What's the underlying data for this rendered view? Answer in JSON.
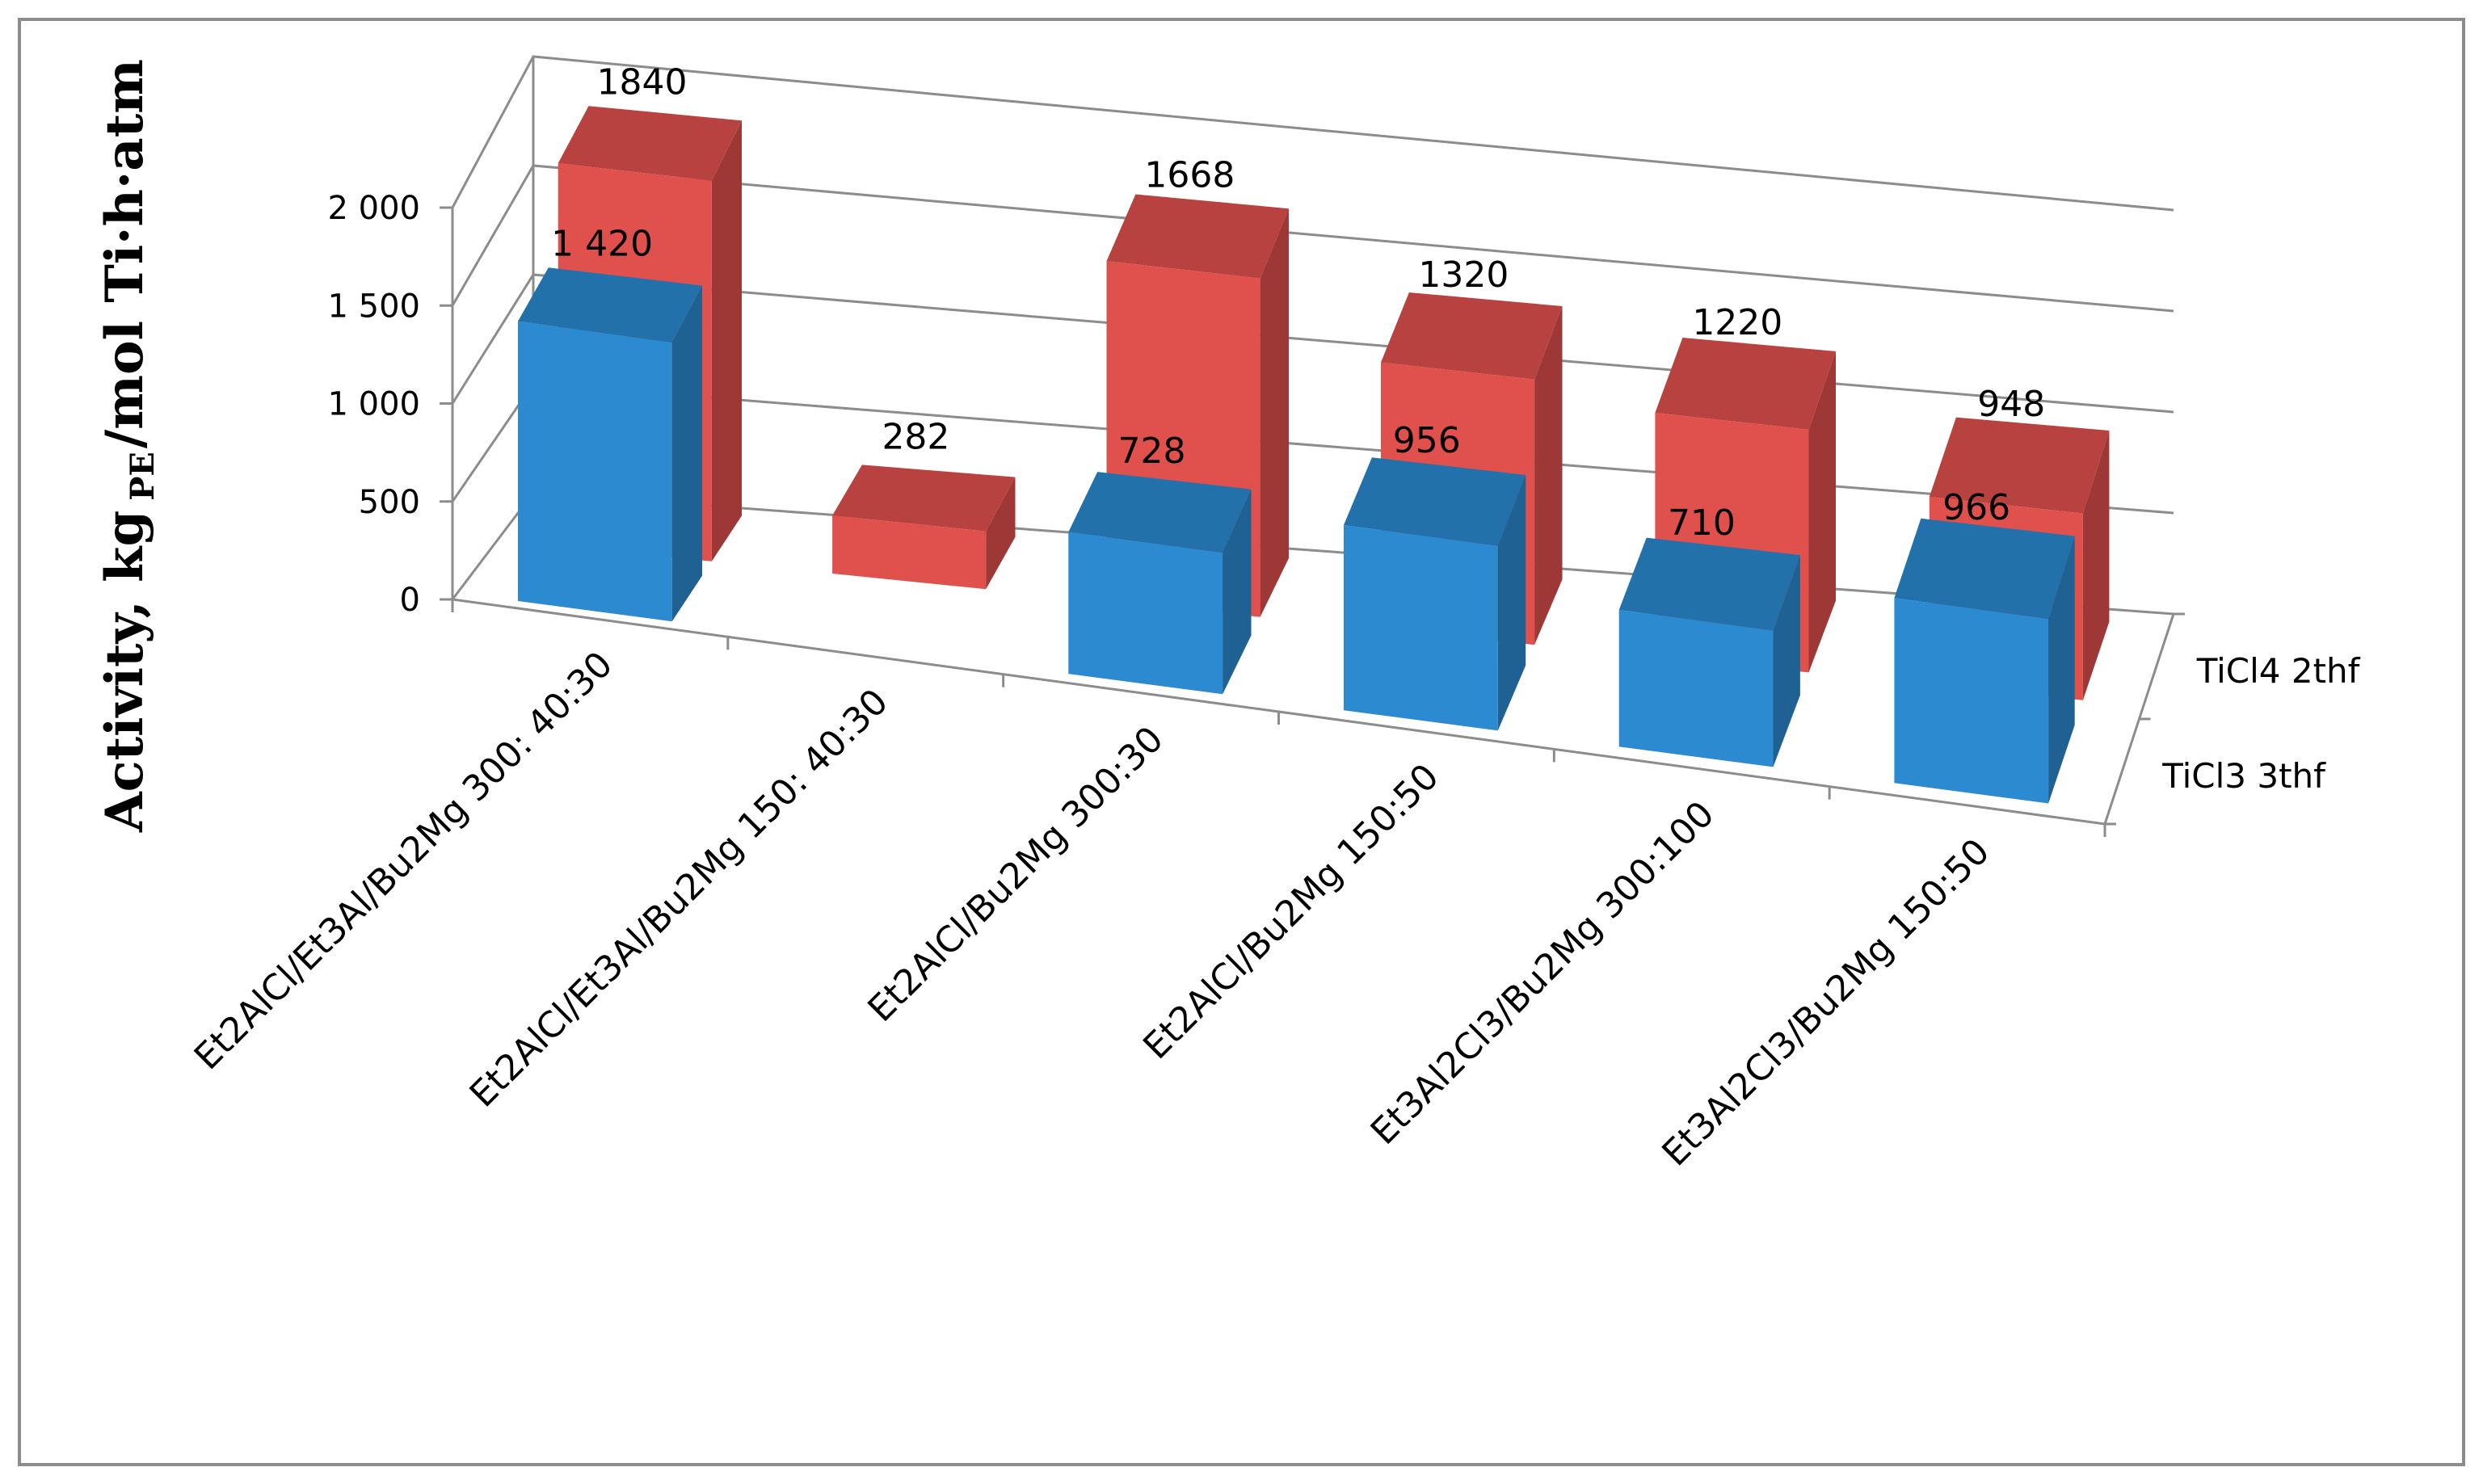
{
  "chart_data": {
    "type": "bar",
    "style": "3d-clustered-columns",
    "ylabel": {
      "prefix": "Activity, kg",
      "subscript": "PE",
      "suffix": "/mol Ti·h·atm"
    },
    "ylim": [
      0,
      2000
    ],
    "yticks": [
      "0",
      "500",
      "1 000",
      "1 500",
      "2 000"
    ],
    "ytick_values": [
      0,
      500,
      1000,
      1500,
      2000
    ],
    "grid": true,
    "legend_position": "right",
    "categories": [
      "Et2AlCl/Et3Al/Bu2Mg 300: 40:30",
      "Et2AlCl/Et3Al/Bu2Mg 150: 40:30",
      "Et2AlCl/Bu2Mg 300:30",
      "Et2AlCl/Bu2Mg 150:50",
      "Et3Al2Cl3/Bu2Mg 300:100",
      "Et3Al2Cl3/Bu2Mg 150:50"
    ],
    "series": [
      {
        "name": "TiCl3 3thf",
        "color": "#2b8ad0",
        "values": [
          1420,
          0,
          728,
          956,
          710,
          966
        ],
        "labels": [
          "1 420",
          "",
          "728",
          "956",
          "710",
          "966"
        ]
      },
      {
        "name": "TiCl4 2thf",
        "color": "#e0504d",
        "values": [
          1840,
          282,
          1668,
          1320,
          1220,
          948
        ],
        "labels": [
          "1840",
          "282",
          "1668",
          "1320",
          "1220",
          "948"
        ]
      }
    ]
  }
}
